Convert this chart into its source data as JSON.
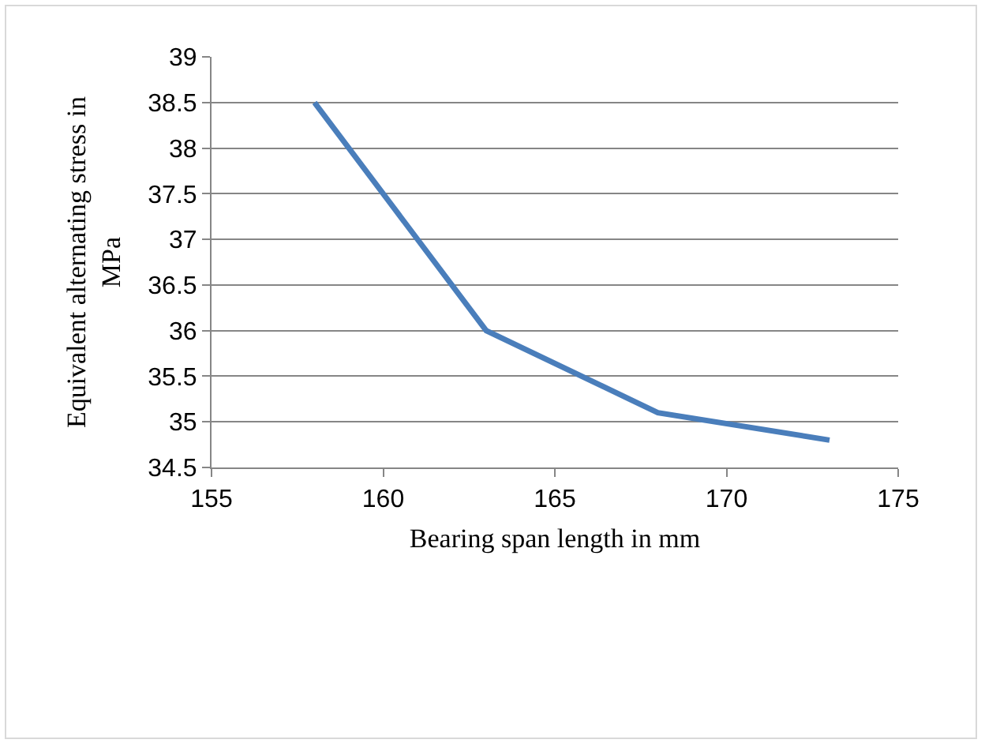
{
  "chart_data": {
    "type": "line",
    "xlabel": "Bearing span length in mm",
    "ylabel": "Equivalent alternating stress in MPa",
    "x": [
      158,
      163,
      168,
      173
    ],
    "series": [
      {
        "color": "#4a7ebb",
        "values": [
          38.5,
          36.0,
          35.1,
          34.8
        ]
      }
    ],
    "xlim": [
      155,
      175
    ],
    "xticks": [
      155,
      160,
      165,
      170,
      175
    ],
    "ylim": [
      34.5,
      39
    ],
    "yticks": [
      34.5,
      35,
      35.5,
      36,
      36.5,
      37,
      37.5,
      38,
      38.5,
      39
    ],
    "grid": "y",
    "marker": "none",
    "line_style": "solid"
  }
}
